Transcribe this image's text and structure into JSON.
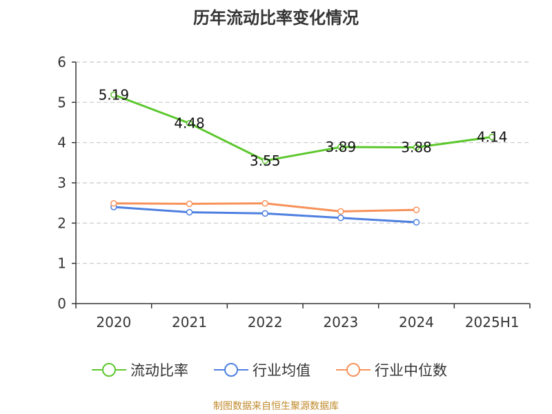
{
  "chart_data": {
    "type": "line",
    "title": "历年流动比率变化情况",
    "categories": [
      "2020",
      "2021",
      "2022",
      "2023",
      "2024",
      "2025H1"
    ],
    "yticks": [
      "0",
      "1",
      "2",
      "3",
      "4",
      "5",
      "6"
    ],
    "ylim": [
      0,
      6
    ],
    "grid": true,
    "legend_position": "bottom",
    "series": [
      {
        "name": "流动比率",
        "color": "#5cc72d",
        "values": [
          5.19,
          4.48,
          3.55,
          3.89,
          3.88,
          4.14
        ],
        "labels": [
          "5.19",
          "4.48",
          "3.55",
          "3.89",
          "3.88",
          "4.14"
        ]
      },
      {
        "name": "行业均值",
        "color": "#4d7fe0",
        "values": [
          2.4,
          2.27,
          2.24,
          2.13,
          2.02,
          null
        ]
      },
      {
        "name": "行业中位数",
        "color": "#f79159",
        "values": [
          2.49,
          2.48,
          2.49,
          2.29,
          2.33,
          null
        ]
      }
    ]
  },
  "source": "制图数据来自恒生聚源数据库"
}
